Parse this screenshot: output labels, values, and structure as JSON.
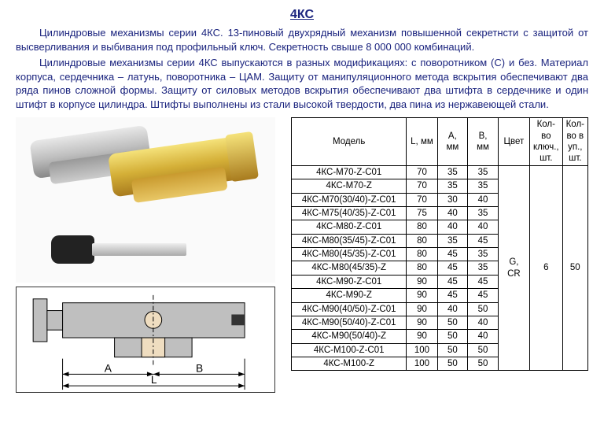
{
  "title": "4КС",
  "para1": "Цилиндровые механизмы серии 4КС. 13-пиновый двухрядный механизм повышенной секретнсти с защитой от высверливания и выбивания под профильный ключ. Секретность свыше 8 000 000 комбинаций.",
  "para2": "Цилиндровые механизмы серии 4КС выпускаются в разных модификациях: с поворотником (С) и без. Материал корпуса, сердечника – латунь, поворотника – ЦАМ. Защиту от манипуляционного метода вскрытия обеспечивают два ряда пинов сложной формы. Защиту от силовых методов вскрытия обеспечивают два штифта в сердечнике и один штифт в корпусе цилиндра. Штифты выполнены из стали высокой твердости, два пина из нержавеющей стали.",
  "table": {
    "headers": [
      "Модель",
      "L, мм",
      "A, мм",
      "B, мм",
      "Цвет",
      "Кол-во ключ., шт.",
      "Кол-во в уп., шт."
    ],
    "rows": [
      {
        "model": "4КС-М70-Z-C01",
        "L": 70,
        "A": 35,
        "B": 35
      },
      {
        "model": "4КС-М70-Z",
        "L": 70,
        "A": 35,
        "B": 35
      },
      {
        "model": "4КС-М70(30/40)-Z-C01",
        "L": 70,
        "A": 30,
        "B": 40
      },
      {
        "model": "4КС-М75(40/35)-Z-C01",
        "L": 75,
        "A": 40,
        "B": 35
      },
      {
        "model": "4КС-М80-Z-C01",
        "L": 80,
        "A": 40,
        "B": 40
      },
      {
        "model": "4КС-М80(35/45)-Z-C01",
        "L": 80,
        "A": 35,
        "B": 45
      },
      {
        "model": "4КС-М80(45/35)-Z-C01",
        "L": 80,
        "A": 45,
        "B": 35
      },
      {
        "model": "4КС-М80(45/35)-Z",
        "L": 80,
        "A": 45,
        "B": 35
      },
      {
        "model": "4КС-М90-Z-C01",
        "L": 90,
        "A": 45,
        "B": 45
      },
      {
        "model": "4КС-М90-Z",
        "L": 90,
        "A": 45,
        "B": 45
      },
      {
        "model": "4КС-М90(40/50)-Z-C01",
        "L": 90,
        "A": 40,
        "B": 50
      },
      {
        "model": "4КС-М90(50/40)-Z-C01",
        "L": 90,
        "A": 50,
        "B": 40
      },
      {
        "model": "4КС-М90(50/40)-Z",
        "L": 90,
        "A": 50,
        "B": 40
      },
      {
        "model": "4КС-М100-Z-C01",
        "L": 100,
        "A": 50,
        "B": 50
      },
      {
        "model": "4КС-М100-Z",
        "L": 100,
        "A": 50,
        "B": 50
      }
    ],
    "color": "G, CR",
    "keys": 6,
    "pack": 50
  },
  "diagram": {
    "labelA": "A",
    "labelB": "B",
    "labelL": "L"
  }
}
